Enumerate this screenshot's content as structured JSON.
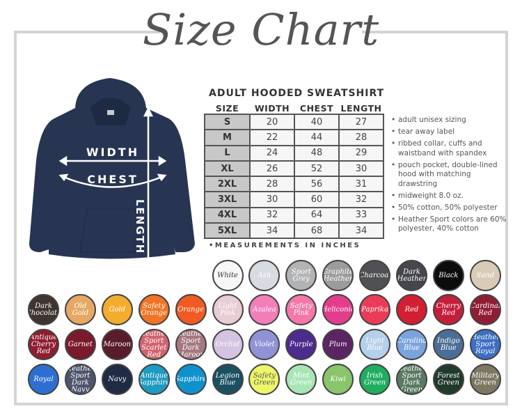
{
  "title": "Size Chart",
  "hoodie": {
    "color": "#273553",
    "width_label": "WIDTH",
    "chest_label": "CHEST",
    "length_label": "LENGTH"
  },
  "table": {
    "title": "ADULT HOODED SWEATSHIRT",
    "headers": [
      "SIZE",
      "WIDTH",
      "CHEST",
      "LENGTH"
    ],
    "rows": [
      [
        "S",
        "20",
        "40",
        "27"
      ],
      [
        "M",
        "22",
        "44",
        "28"
      ],
      [
        "L",
        "24",
        "48",
        "29"
      ],
      [
        "XL",
        "26",
        "52",
        "30"
      ],
      [
        "2XL",
        "28",
        "56",
        "31"
      ],
      [
        "3XL",
        "30",
        "60",
        "32"
      ],
      [
        "4XL",
        "32",
        "64",
        "33"
      ],
      [
        "5XL",
        "34",
        "68",
        "34"
      ]
    ],
    "note": "•MEASUREMENTS IN INCHES"
  },
  "features": [
    "adult unisex sizing",
    "tear away label",
    "ribbed collar, cuffs and waistband with spandex",
    "pouch pocket, double-lined hood with matching drawstring",
    "midweight 8.0 oz.",
    "50% cotton, 50% polyester",
    "Heather Sport colors are 60% polyester, 40% cotton"
  ],
  "swatches": [
    [
      {
        "name": "White",
        "color": "#f7f7f7",
        "text": "#333"
      },
      {
        "name": "Ash",
        "color": "#d9dbe2",
        "text": "#fff"
      },
      {
        "name": "Sport Grey",
        "color": "#b2b3b5",
        "text": "#fff"
      },
      {
        "name": "Graphite Heather",
        "color": "#9c9c9c",
        "text": "#fff"
      },
      {
        "name": "Charcoal",
        "color": "#505154",
        "text": "#fff"
      },
      {
        "name": "Dark Heather",
        "color": "#45474c",
        "text": "#fff"
      },
      {
        "name": "Black",
        "color": "#0c0c0c",
        "text": "#fff"
      },
      {
        "name": "Sand",
        "color": "#d8ccb8",
        "text": "#fff"
      }
    ],
    [
      {
        "name": "Dark Chocolate",
        "color": "#3e3430",
        "text": "#fff"
      },
      {
        "name": "Old Gold",
        "color": "#e6a864",
        "text": "#fff"
      },
      {
        "name": "Gold",
        "color": "#f4ac2f",
        "text": "#fff"
      },
      {
        "name": "Safety Orange",
        "color": "#f07424",
        "text": "#fff"
      },
      {
        "name": "Orange",
        "color": "#f15a22",
        "text": "#fff"
      },
      {
        "name": "Light Pink",
        "color": "#e8cdd4",
        "text": "#fff"
      },
      {
        "name": "Azalea",
        "color": "#f27fb8",
        "text": "#fff"
      },
      {
        "name": "Safety Pink",
        "color": "#f378a9",
        "text": "#fff"
      },
      {
        "name": "Heliconia",
        "color": "#e33c8c",
        "text": "#fff"
      },
      {
        "name": "Paprika",
        "color": "#ea3c58",
        "text": "#fff"
      },
      {
        "name": "Red",
        "color": "#d21f32",
        "text": "#fff"
      },
      {
        "name": "Cherry Red",
        "color": "#c41e3a",
        "text": "#fff"
      },
      {
        "name": "Cardinal Red",
        "color": "#8f1d33",
        "text": "#fff"
      }
    ],
    [
      {
        "name": "Antique Cherry Red",
        "color": "#8e1d2f",
        "text": "#fff"
      },
      {
        "name": "Garnet",
        "color": "#7a1a2b",
        "text": "#fff"
      },
      {
        "name": "Maroon",
        "color": "#5a1c2b",
        "text": "#fff"
      },
      {
        "name": "Heather Sport Scarlet Red",
        "color": "#d0646e",
        "text": "#fff"
      },
      {
        "name": "Heather Sport Dark Maroon",
        "color": "#a47880",
        "text": "#fff"
      },
      {
        "name": "Orchid",
        "color": "#d5c3e2",
        "text": "#fff"
      },
      {
        "name": "Violet",
        "color": "#8f93d6",
        "text": "#fff"
      },
      {
        "name": "Purple",
        "color": "#4b2c8e",
        "text": "#fff"
      },
      {
        "name": "Plum",
        "color": "#5b2462",
        "text": "#fff"
      },
      {
        "name": "Light Blue",
        "color": "#b6cfeb",
        "text": "#fff"
      },
      {
        "name": "Carolina Blue",
        "color": "#7ba4dd",
        "text": "#fff"
      },
      {
        "name": "Indigo Blue",
        "color": "#4b6e96",
        "text": "#fff"
      },
      {
        "name": "Heather Sport Royal",
        "color": "#3c6fc4",
        "text": "#fff"
      }
    ],
    [
      {
        "name": "Royal",
        "color": "#2c6fd1",
        "text": "#fff"
      },
      {
        "name": "Heather Sport Dark Navy",
        "color": "#4e546c",
        "text": "#fff"
      },
      {
        "name": "Navy",
        "color": "#1f2a44",
        "text": "#fff"
      },
      {
        "name": "Antique Sapphire",
        "color": "#1f9ac1",
        "text": "#fff"
      },
      {
        "name": "Sapphire",
        "color": "#0f92cc",
        "text": "#fff"
      },
      {
        "name": "Legion Blue",
        "color": "#1b4f62",
        "text": "#fff"
      },
      {
        "name": "Safety Green",
        "color": "#eef56a",
        "text": "#555"
      },
      {
        "name": "Mint Green",
        "color": "#a9e6b5",
        "text": "#fff"
      },
      {
        "name": "Kiwi",
        "color": "#88c56b",
        "text": "#fff"
      },
      {
        "name": "Irish Green",
        "color": "#1fae5f",
        "text": "#fff"
      },
      {
        "name": "Heather Sport Dark Green",
        "color": "#5a7a64",
        "text": "#fff"
      },
      {
        "name": "Forest Green",
        "color": "#213a2c",
        "text": "#fff"
      },
      {
        "name": "Military Green",
        "color": "#7d7863",
        "text": "#fff"
      }
    ]
  ]
}
